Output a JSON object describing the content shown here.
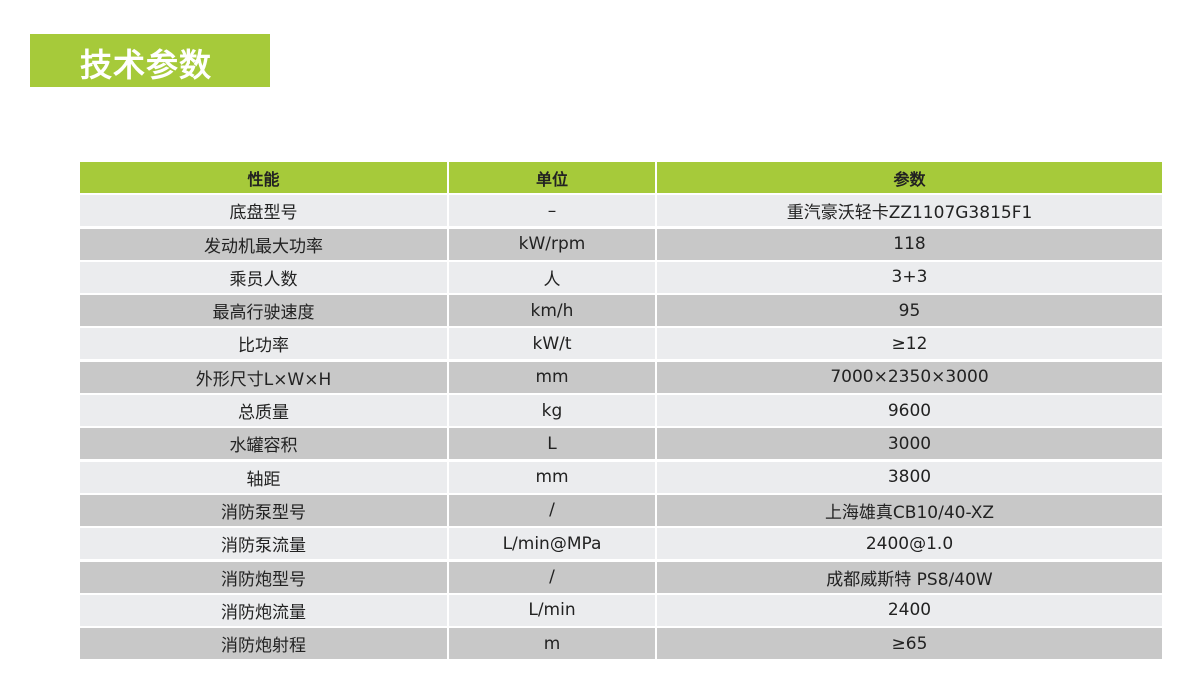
{
  "title": "技术参数",
  "colors": {
    "accent": "#a6ca3a",
    "row_light": "#ebecee",
    "row_dark": "#c8c8c8"
  },
  "table": {
    "headers": [
      "性能",
      "单位",
      "参数"
    ],
    "rows": [
      [
        "底盘型号",
        "–",
        "重汽豪沃轻卡ZZ1107G3815F1"
      ],
      [
        "发动机最大功率",
        "kW/rpm",
        "118"
      ],
      [
        "乘员人数",
        "人",
        "3+3"
      ],
      [
        "最高行驶速度",
        "km/h",
        "95"
      ],
      [
        "比功率",
        "kW/t",
        "≥12"
      ],
      [
        "外形尺寸L×W×H",
        "mm",
        "7000×2350×3000"
      ],
      [
        "总质量",
        "kg",
        "9600"
      ],
      [
        "水罐容积",
        "L",
        "3000"
      ],
      [
        "轴距",
        "mm",
        "3800"
      ],
      [
        "消防泵型号",
        "/",
        "上海雄真CB10/40-XZ"
      ],
      [
        "消防泵流量",
        "L/min@MPa",
        "2400@1.0"
      ],
      [
        "消防炮型号",
        "/",
        "成都威斯特 PS8/40W"
      ],
      [
        "消防炮流量",
        "L/min",
        "2400"
      ],
      [
        "消防炮射程",
        "m",
        "≥65"
      ]
    ]
  }
}
